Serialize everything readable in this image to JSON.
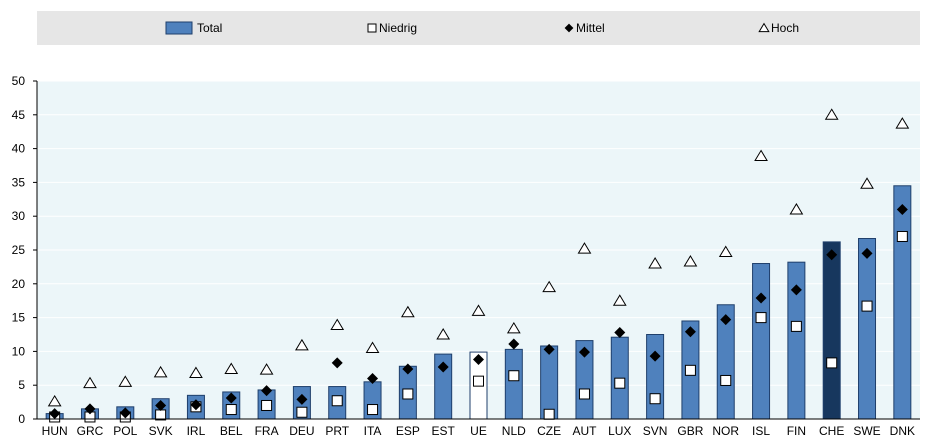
{
  "chart_data": {
    "type": "bar",
    "categories": [
      "HUN",
      "GRC",
      "POL",
      "SVK",
      "IRL",
      "BEL",
      "FRA",
      "DEU",
      "PRT",
      "ITA",
      "ESP",
      "EST",
      "UE",
      "NLD",
      "CZE",
      "AUT",
      "LUX",
      "SVN",
      "GBR",
      "NOR",
      "ISL",
      "FIN",
      "CHE",
      "SWE",
      "DNK"
    ],
    "series": [
      {
        "name": "Total",
        "kind": "bar",
        "values": [
          0.8,
          1.5,
          1.8,
          3.0,
          3.5,
          4.0,
          4.3,
          4.8,
          4.8,
          5.5,
          7.8,
          9.6,
          9.9,
          10.3,
          10.8,
          11.6,
          12.1,
          12.5,
          14.5,
          16.9,
          23.0,
          23.2,
          26.2,
          26.7,
          34.5
        ]
      },
      {
        "name": "Niedrig",
        "kind": "square",
        "values": [
          0.3,
          0.3,
          0.3,
          0.6,
          1.8,
          1.4,
          2.0,
          1.0,
          2.7,
          1.4,
          3.7,
          null,
          5.6,
          6.4,
          0.7,
          3.7,
          5.3,
          3.0,
          7.2,
          5.7,
          15.0,
          13.7,
          8.3,
          16.7,
          27.0
        ]
      },
      {
        "name": "Mittel",
        "kind": "diamond",
        "values": [
          0.8,
          1.5,
          0.9,
          2.0,
          2.1,
          3.1,
          4.2,
          2.9,
          8.3,
          6.0,
          7.4,
          7.7,
          8.8,
          11.1,
          10.3,
          9.9,
          12.8,
          9.3,
          12.9,
          14.7,
          17.9,
          19.1,
          24.3,
          24.5,
          31.0
        ]
      },
      {
        "name": "Hoch",
        "kind": "triangle",
        "values": [
          2.6,
          5.3,
          5.5,
          6.9,
          6.8,
          7.4,
          7.3,
          10.9,
          13.9,
          10.5,
          15.8,
          12.5,
          16.0,
          13.4,
          19.5,
          25.2,
          17.5,
          23.0,
          23.3,
          24.7,
          38.9,
          31.0,
          45.0,
          34.8,
          43.7
        ]
      }
    ],
    "highlight": {
      "UE": "outline",
      "CHE": "dark"
    },
    "ylim": [
      0,
      50
    ],
    "yticks": [
      0,
      5,
      10,
      15,
      20,
      25,
      30,
      35,
      40,
      45,
      50
    ],
    "title": "",
    "xlabel": "",
    "ylabel": "",
    "legend_position": "top",
    "colors": {
      "bar": "#4f81bd",
      "bar_edge": "#1f3f6b",
      "bar_dark": "#17375e",
      "plot_bg": "#ecf6f9",
      "legend_bg": "#e6e6e6",
      "gridline": "#ffffff",
      "axis": "#000000"
    }
  }
}
